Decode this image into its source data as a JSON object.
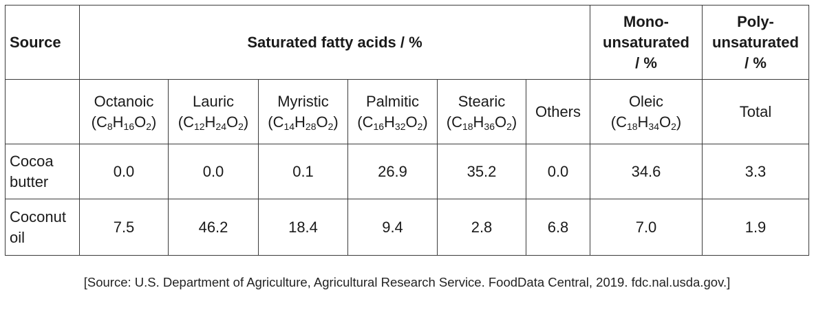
{
  "header": {
    "source_label": "Source",
    "saturated_label": "Saturated fatty acids / %",
    "mono_lines": [
      "Mono-",
      "unsaturated",
      "/ %"
    ],
    "poly_lines": [
      "Poly-",
      "unsaturated",
      "/ %"
    ]
  },
  "columns": [
    {
      "name": "Octanoic",
      "formula": [
        [
          "C",
          "8"
        ],
        [
          "H",
          "16"
        ],
        [
          "O",
          "2"
        ]
      ]
    },
    {
      "name": "Lauric",
      "formula": [
        [
          "C",
          "12"
        ],
        [
          "H",
          "24"
        ],
        [
          "O",
          "2"
        ]
      ]
    },
    {
      "name": "Myristic",
      "formula": [
        [
          "C",
          "14"
        ],
        [
          "H",
          "28"
        ],
        [
          "O",
          "2"
        ]
      ]
    },
    {
      "name": "Palmitic",
      "formula": [
        [
          "C",
          "16"
        ],
        [
          "H",
          "32"
        ],
        [
          "O",
          "2"
        ]
      ]
    },
    {
      "name": "Stearic",
      "formula": [
        [
          "C",
          "18"
        ],
        [
          "H",
          "36"
        ],
        [
          "O",
          "2"
        ]
      ]
    },
    {
      "name": "Others",
      "formula": null
    },
    {
      "name": "Oleic",
      "formula": [
        [
          "C",
          "18"
        ],
        [
          "H",
          "34"
        ],
        [
          "O",
          "2"
        ]
      ]
    },
    {
      "name": "Total",
      "formula": null
    }
  ],
  "rows": [
    {
      "source_lines": [
        "Cocoa",
        "butter"
      ],
      "values": [
        "0.0",
        "0.0",
        "0.1",
        "26.9",
        "35.2",
        "0.0",
        "34.6",
        "3.3"
      ]
    },
    {
      "source_lines": [
        "Coconut",
        "oil"
      ],
      "values": [
        "7.5",
        "46.2",
        "18.4",
        "9.4",
        "2.8",
        "6.8",
        "7.0",
        "1.9"
      ]
    }
  ],
  "source_note": "[Source: U.S. Department of Agriculture, Agricultural Research Service. FoodData Central, 2019. fdc.nal.usda.gov.]"
}
